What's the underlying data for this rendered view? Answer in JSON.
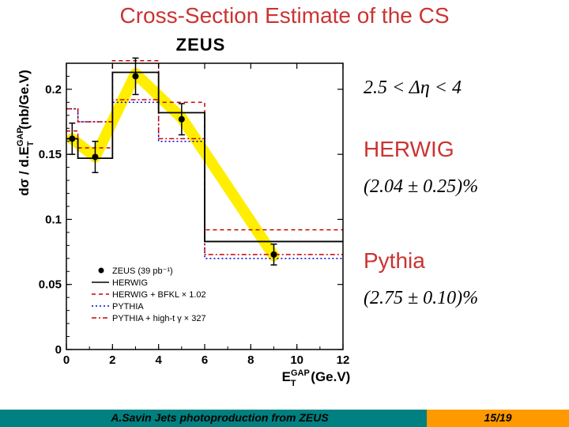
{
  "title": "Cross-Section Estimate of the CS",
  "title_color": "#cc3333",
  "chart": {
    "title": "ZEUS",
    "ylabel": "dσ / dE_T^GAP (nb/Ge.V)",
    "xlabel": "E_T^GAP (Ge.V)",
    "xlim": [
      0,
      12
    ],
    "ylim": [
      0,
      0.22
    ],
    "xticks": [
      0,
      2,
      4,
      6,
      8,
      10,
      12
    ],
    "yticks": [
      0,
      0.05,
      0.1,
      0.15,
      0.2
    ],
    "data_points": {
      "x": [
        0.25,
        1.25,
        3,
        5,
        9
      ],
      "y": [
        0.162,
        0.148,
        0.21,
        0.177,
        0.073
      ],
      "yerr": [
        0.012,
        0.012,
        0.014,
        0.012,
        0.008
      ]
    },
    "herwig_steps": {
      "edges": [
        0,
        0.5,
        2,
        4,
        6,
        12
      ],
      "values": [
        0.162,
        0.147,
        0.213,
        0.182,
        0.083
      ]
    },
    "herwig_bfkl_steps": {
      "edges": [
        0,
        0.5,
        2,
        4,
        6,
        12
      ],
      "values": [
        0.168,
        0.155,
        0.222,
        0.19,
        0.092
      ]
    },
    "pythia_steps": {
      "edges": [
        0,
        0.5,
        2,
        4,
        6,
        12
      ],
      "values": [
        0.185,
        0.175,
        0.19,
        0.16,
        0.07
      ]
    },
    "pythia_hight_steps": {
      "edges": [
        0,
        0.5,
        2,
        4,
        6,
        12
      ],
      "values": [
        0.185,
        0.175,
        0.192,
        0.162,
        0.073
      ]
    },
    "band_path": [
      [
        0.25,
        0.162
      ],
      [
        1.25,
        0.148
      ],
      [
        3,
        0.212
      ],
      [
        5,
        0.178
      ],
      [
        9,
        0.072
      ]
    ],
    "colors": {
      "axis": "#000000",
      "data": "#000000",
      "herwig": "#000000",
      "herwig_bfkl": "#cc0000",
      "pythia": "#0000cc",
      "pythia_hight": "#cc0000",
      "band": "#ffee00",
      "background": "#ffffff"
    },
    "legend": [
      {
        "label": "ZEUS (39 pb⁻¹)",
        "type": "marker",
        "color": "#000000"
      },
      {
        "label": "HERWIG",
        "type": "solid",
        "color": "#000000"
      },
      {
        "label": "HERWIG + BFKL × 1.02",
        "type": "dashed",
        "color": "#cc0000"
      },
      {
        "label": "PYTHIA",
        "type": "dotted",
        "color": "#0000cc"
      },
      {
        "label": "PYTHIA + high-t γ × 327",
        "type": "dashdot",
        "color": "#cc0000"
      }
    ]
  },
  "right": {
    "range": "2.5 < Δη < 4",
    "herwig_label": "HERWIG",
    "herwig_label_color": "#cc3333",
    "herwig_value": "(2.04 ± 0.25)%",
    "pythia_label": "Pythia",
    "pythia_label_color": "#cc3333",
    "pythia_value": "(2.75 ± 0.10)%"
  },
  "footer": {
    "left": "A.Savin Jets photoproduction from ZEUS",
    "right": "15/19",
    "left_bg": "#008080",
    "right_bg": "#ff9900"
  }
}
